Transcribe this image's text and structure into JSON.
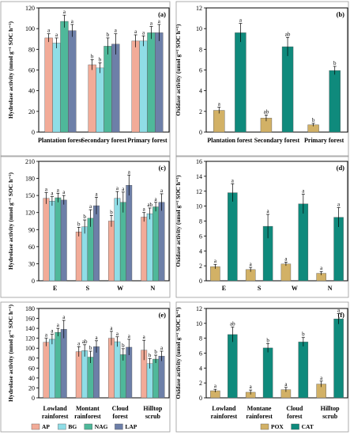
{
  "colors": {
    "AP": "#f2ab98",
    "BG": "#8fdde6",
    "NAG": "#4fb89a",
    "LAP": "#6d7fa8",
    "POX": "#d2b166",
    "CAT": "#0f8a7c"
  },
  "legend": [
    {
      "key": "AP",
      "label": "AP"
    },
    {
      "key": "BG",
      "label": "BG"
    },
    {
      "key": "NAG",
      "label": "NAG"
    },
    {
      "key": "LAP",
      "label": "LAP"
    },
    {
      "key": "POX",
      "label": "POX"
    },
    {
      "key": "CAT",
      "label": "CAT"
    }
  ],
  "chart_data": [
    {
      "panel_label": "(a)",
      "type": "bar",
      "ylabel": "Hydrolase activity (nmol g⁻¹ SOC h⁻¹)",
      "ylim": [
        0,
        120
      ],
      "yticks": [
        "0",
        "20",
        "40",
        "60",
        "80",
        "100",
        "120"
      ],
      "categories": [
        "Plantation forest",
        "Secondary forest",
        "Primary forest"
      ],
      "series": [
        {
          "name": "AP",
          "values": [
            91,
            65,
            88
          ],
          "errors": [
            4,
            5,
            6
          ],
          "sig": [
            "a",
            "b",
            "a"
          ]
        },
        {
          "name": "BG",
          "values": [
            86,
            62,
            88
          ],
          "errors": [
            5,
            5,
            5
          ],
          "sig": [
            "a",
            "b",
            "a"
          ]
        },
        {
          "name": "NAG",
          "values": [
            107,
            83,
            96
          ],
          "errors": [
            6,
            8,
            6
          ],
          "sig": [
            "a",
            "b",
            "a"
          ]
        },
        {
          "name": "LAP",
          "values": [
            98,
            85,
            96
          ],
          "errors": [
            6,
            10,
            8
          ],
          "sig": [
            "a",
            "a",
            "a"
          ]
        }
      ]
    },
    {
      "panel_label": "(b)",
      "type": "bar",
      "ylabel": "Oxidase activity (umol g⁻¹ SOC h⁻¹)",
      "ylim": [
        0,
        12
      ],
      "yticks": [
        "0",
        "2",
        "4",
        "6",
        "8",
        "10",
        "12"
      ],
      "categories": [
        "Plantation forest",
        "Secondary forest",
        "Primary forest"
      ],
      "series": [
        {
          "name": "POX",
          "values": [
            2.1,
            1.35,
            0.7
          ],
          "errors": [
            0.3,
            0.3,
            0.15
          ],
          "sig": [
            "a",
            "ab",
            "b"
          ]
        },
        {
          "name": "CAT",
          "values": [
            9.6,
            8.25,
            5.95
          ],
          "errors": [
            0.9,
            0.9,
            0.4
          ],
          "sig": [
            "a",
            "ab",
            "b"
          ]
        }
      ]
    },
    {
      "panel_label": "(c)",
      "type": "bar",
      "ylabel": "Hydrolase activity (nmol g⁻¹ SOC h⁻¹)",
      "ylim": [
        0,
        210
      ],
      "yticks": [
        "0",
        "30",
        "60",
        "90",
        "120",
        "150",
        "180",
        "210"
      ],
      "categories": [
        "E",
        "S",
        "W",
        "N"
      ],
      "series": [
        {
          "name": "AP",
          "values": [
            145,
            86,
            105,
            112
          ],
          "errors": [
            10,
            8,
            10,
            8
          ],
          "sig": [
            "a",
            "b",
            "b",
            "a"
          ]
        },
        {
          "name": "BG",
          "values": [
            140,
            95,
            145,
            118
          ],
          "errors": [
            8,
            12,
            12,
            10
          ],
          "sig": [
            "a",
            "b",
            "a",
            "ab"
          ]
        },
        {
          "name": "NAG",
          "values": [
            146,
            110,
            138,
            130
          ],
          "errors": [
            8,
            15,
            18,
            8
          ],
          "sig": [
            "a",
            "a",
            "a",
            "a"
          ]
        },
        {
          "name": "LAP",
          "values": [
            142,
            132,
            168,
            138
          ],
          "errors": [
            8,
            15,
            18,
            15
          ],
          "sig": [
            "a",
            "a",
            "a",
            "a"
          ]
        }
      ]
    },
    {
      "panel_label": "(d)",
      "type": "bar",
      "ylabel": "Oxidase activity (umol g⁻¹ SOC h⁻¹)",
      "ylim": [
        0,
        16
      ],
      "yticks": [
        "0",
        "2",
        "4",
        "6",
        "8",
        "10",
        "12",
        "14",
        "16"
      ],
      "categories": [
        "E",
        "S",
        "W",
        "N"
      ],
      "series": [
        {
          "name": "POX",
          "values": [
            1.9,
            1.5,
            2.25,
            1.0
          ],
          "errors": [
            0.3,
            0.3,
            0.25,
            0.25
          ],
          "sig": [
            "a",
            "a",
            "a",
            "a"
          ]
        },
        {
          "name": "CAT",
          "values": [
            11.8,
            7.3,
            10.3,
            8.5
          ],
          "errors": [
            1.2,
            1.6,
            1.3,
            1.3
          ],
          "sig": [
            "a",
            "a",
            "a",
            "a"
          ]
        }
      ]
    },
    {
      "panel_label": "(e)",
      "type": "bar",
      "ylabel": "Hydrolase activity (nmol g⁻¹ SOC h⁻¹)",
      "ylim": [
        0,
        180
      ],
      "yticks": [
        "0",
        "20",
        "40",
        "60",
        "80",
        "100",
        "120",
        "140",
        "160",
        "180"
      ],
      "categories": [
        "Lowland rainforest",
        "Montant rainforest",
        "Cloud forest",
        "Hilltop scrub"
      ],
      "series": [
        {
          "name": "AP",
          "values": [
            112,
            93,
            120,
            96
          ],
          "errors": [
            8,
            10,
            14,
            20
          ],
          "sig": [
            "a",
            "a",
            "a",
            "a"
          ]
        },
        {
          "name": "BG",
          "values": [
            118,
            95,
            113,
            69
          ],
          "errors": [
            10,
            12,
            10,
            10
          ],
          "sig": [
            "a",
            "ab",
            "a",
            "b"
          ]
        },
        {
          "name": "NAG",
          "values": [
            132,
            82,
            87,
            78
          ],
          "errors": [
            8,
            12,
            12,
            8
          ],
          "sig": [
            "a",
            "b",
            "b",
            "b"
          ]
        },
        {
          "name": "LAP",
          "values": [
            138,
            103,
            102,
            84
          ],
          "errors": [
            18,
            12,
            16,
            10
          ],
          "sig": [
            "a",
            "a",
            "a",
            "a"
          ]
        }
      ]
    },
    {
      "panel_label": "(f)",
      "type": "bar",
      "ylabel": "Oxidase activity (umol g⁻¹ SOC h⁻¹)",
      "ylim": [
        0,
        12
      ],
      "yticks": [
        "0",
        "2",
        "4",
        "6",
        "8",
        "10",
        "12"
      ],
      "categories": [
        "Lowland rainforest",
        "Montane rainforest",
        "Cloud forest",
        "Hilltop scrub"
      ],
      "series": [
        {
          "name": "POX",
          "values": [
            0.95,
            0.75,
            1.1,
            1.85
          ],
          "errors": [
            0.2,
            0.3,
            0.3,
            0.4
          ],
          "sig": [
            "a",
            "a",
            "a",
            "a"
          ]
        },
        {
          "name": "CAT",
          "values": [
            8.5,
            6.7,
            7.5,
            10.6
          ],
          "errors": [
            1.0,
            0.6,
            0.6,
            0.7
          ],
          "sig": [
            "ab",
            "b",
            "b",
            "a"
          ]
        }
      ]
    }
  ]
}
